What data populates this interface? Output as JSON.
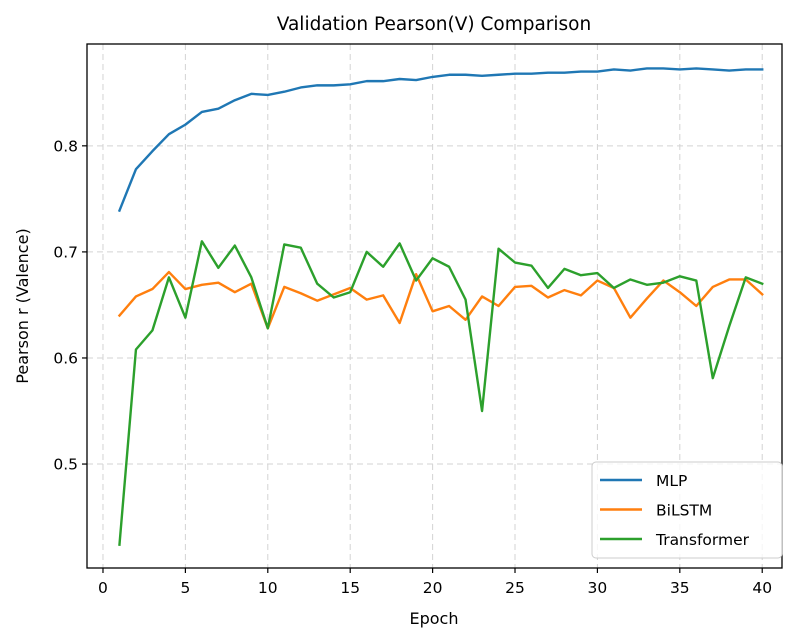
{
  "chart_data": {
    "type": "line",
    "title": "Validation Pearson(V) Comparison",
    "xlabel": "Epoch",
    "ylabel": "Pearson r (Valence)",
    "xlim": [
      -0.97,
      41.2
    ],
    "ylim": [
      0.402,
      0.896
    ],
    "xticks": [
      0,
      5,
      10,
      15,
      20,
      25,
      30,
      35,
      40
    ],
    "yticks": [
      0.5,
      0.6,
      0.7,
      0.8
    ],
    "xtick_labels": [
      "0",
      "5",
      "10",
      "15",
      "20",
      "25",
      "30",
      "35",
      "40"
    ],
    "ytick_labels": [
      "0.5",
      "0.6",
      "0.7",
      "0.8"
    ],
    "grid": true,
    "legend_position": "lower-right",
    "x": [
      1,
      2,
      3,
      4,
      5,
      6,
      7,
      8,
      9,
      10,
      11,
      12,
      13,
      14,
      15,
      16,
      17,
      18,
      19,
      20,
      21,
      22,
      23,
      24,
      25,
      26,
      27,
      28,
      29,
      30,
      31,
      32,
      33,
      34,
      35,
      36,
      37,
      38,
      39,
      40
    ],
    "series": [
      {
        "name": "MLP",
        "color": "#1f77b4",
        "values": [
          0.739,
          0.778,
          0.795,
          0.811,
          0.82,
          0.832,
          0.835,
          0.843,
          0.849,
          0.848,
          0.851,
          0.855,
          0.857,
          0.857,
          0.858,
          0.861,
          0.861,
          0.863,
          0.862,
          0.865,
          0.867,
          0.867,
          0.866,
          0.867,
          0.868,
          0.868,
          0.869,
          0.869,
          0.87,
          0.87,
          0.872,
          0.871,
          0.873,
          0.873,
          0.872,
          0.873,
          0.872,
          0.871,
          0.872,
          0.872
        ]
      },
      {
        "name": "BiLSTM",
        "color": "#ff7f0e",
        "values": [
          0.64,
          0.658,
          0.665,
          0.681,
          0.665,
          0.669,
          0.671,
          0.662,
          0.67,
          0.628,
          0.667,
          0.661,
          0.654,
          0.66,
          0.666,
          0.655,
          0.659,
          0.633,
          0.679,
          0.644,
          0.649,
          0.636,
          0.658,
          0.649,
          0.667,
          0.668,
          0.657,
          0.664,
          0.659,
          0.673,
          0.666,
          0.638,
          0.656,
          0.673,
          0.662,
          0.649,
          0.667,
          0.674,
          0.674,
          0.66
        ]
      },
      {
        "name": "Transformer",
        "color": "#2ca02c",
        "values": [
          0.424,
          0.608,
          0.626,
          0.676,
          0.638,
          0.71,
          0.685,
          0.706,
          0.676,
          0.628,
          0.707,
          0.704,
          0.67,
          0.657,
          0.662,
          0.7,
          0.686,
          0.708,
          0.673,
          0.694,
          0.686,
          0.655,
          0.55,
          0.703,
          0.69,
          0.687,
          0.666,
          0.684,
          0.678,
          0.68,
          0.666,
          0.674,
          0.669,
          0.671,
          0.677,
          0.673,
          0.581,
          0.63,
          0.676,
          0.67
        ]
      }
    ]
  }
}
